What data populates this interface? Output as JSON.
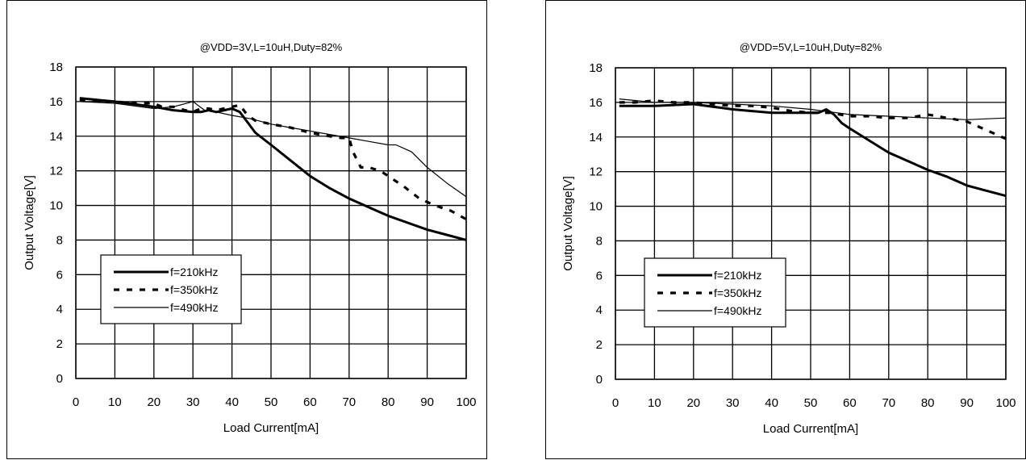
{
  "chart_data": [
    {
      "type": "line",
      "title": "@VDD=3V,L=10uH,Duty=82%",
      "xlabel": "Load Current[mA]",
      "ylabel": "Output Voltage[V]",
      "xlim": [
        0,
        100
      ],
      "ylim": [
        0,
        18
      ],
      "x_ticks": [
        "0",
        "10",
        "20",
        "30",
        "40",
        "50",
        "60",
        "70",
        "80",
        "90",
        "100"
      ],
      "y_ticks": [
        "0",
        "2",
        "4",
        "6",
        "8",
        "10",
        "12",
        "14",
        "16",
        "18"
      ],
      "grid": true,
      "legend_position": "lower-left",
      "series": [
        {
          "name": "f=210kHz",
          "style": "thick",
          "color": "#000000",
          "points": [
            [
              1,
              16.2
            ],
            [
              10,
              16.0
            ],
            [
              20,
              15.7
            ],
            [
              25,
              15.5
            ],
            [
              30,
              15.4
            ],
            [
              32,
              15.4
            ],
            [
              34,
              15.5
            ],
            [
              36,
              15.4
            ],
            [
              38,
              15.5
            ],
            [
              40,
              15.6
            ],
            [
              42,
              15.4
            ],
            [
              44,
              14.8
            ],
            [
              46,
              14.2
            ],
            [
              50,
              13.5
            ],
            [
              55,
              12.6
            ],
            [
              60,
              11.7
            ],
            [
              65,
              11.0
            ],
            [
              70,
              10.4
            ],
            [
              75,
              9.9
            ],
            [
              80,
              9.4
            ],
            [
              85,
              9.0
            ],
            [
              90,
              8.6
            ],
            [
              95,
              8.3
            ],
            [
              100,
              8.0
            ]
          ]
        },
        {
          "name": "f=350kHz",
          "style": "dashed",
          "color": "#000000",
          "points": [
            [
              1,
              16.1
            ],
            [
              10,
              16.0
            ],
            [
              15,
              15.9
            ],
            [
              20,
              15.9
            ],
            [
              22,
              15.7
            ],
            [
              25,
              15.7
            ],
            [
              28,
              15.5
            ],
            [
              30,
              15.4
            ],
            [
              32,
              15.6
            ],
            [
              34,
              15.6
            ],
            [
              36,
              15.5
            ],
            [
              38,
              15.6
            ],
            [
              40,
              15.7
            ],
            [
              42,
              15.8
            ],
            [
              44,
              15.2
            ],
            [
              46,
              14.9
            ],
            [
              50,
              14.7
            ],
            [
              55,
              14.5
            ],
            [
              60,
              14.2
            ],
            [
              65,
              14.0
            ],
            [
              68,
              13.9
            ],
            [
              70,
              13.9
            ],
            [
              71,
              13.1
            ],
            [
              73,
              12.2
            ],
            [
              75,
              12.2
            ],
            [
              78,
              12.0
            ],
            [
              80,
              11.7
            ],
            [
              84,
              11.1
            ],
            [
              88,
              10.4
            ],
            [
              92,
              10.0
            ],
            [
              96,
              9.7
            ],
            [
              100,
              9.2
            ]
          ]
        },
        {
          "name": "f=490kHz",
          "style": "thin",
          "color": "#000000",
          "points": [
            [
              1,
              16.0
            ],
            [
              10,
              15.9
            ],
            [
              20,
              15.6
            ],
            [
              25,
              15.7
            ],
            [
              30,
              16.0
            ],
            [
              33,
              15.5
            ],
            [
              36,
              15.4
            ],
            [
              40,
              15.2
            ],
            [
              45,
              15.0
            ],
            [
              50,
              14.7
            ],
            [
              55,
              14.5
            ],
            [
              60,
              14.3
            ],
            [
              65,
              14.1
            ],
            [
              70,
              13.9
            ],
            [
              75,
              13.7
            ],
            [
              80,
              13.5
            ],
            [
              82,
              13.5
            ],
            [
              86,
              13.1
            ],
            [
              90,
              12.2
            ],
            [
              95,
              11.3
            ],
            [
              100,
              10.5
            ]
          ]
        }
      ]
    },
    {
      "type": "line",
      "title": "@VDD=5V,L=10uH,Duty=82%",
      "xlabel": "Load Current[mA]",
      "ylabel": "Output Voltage[V]",
      "xlim": [
        0,
        100
      ],
      "ylim": [
        0,
        18
      ],
      "x_ticks": [
        "0",
        "10",
        "20",
        "30",
        "40",
        "50",
        "60",
        "70",
        "80",
        "90",
        "100"
      ],
      "y_ticks": [
        "0",
        "2",
        "4",
        "6",
        "8",
        "10",
        "12",
        "14",
        "16",
        "18"
      ],
      "grid": true,
      "legend_position": "lower-left",
      "series": [
        {
          "name": "f=210kHz",
          "style": "thick",
          "color": "#000000",
          "points": [
            [
              1,
              15.8
            ],
            [
              10,
              15.8
            ],
            [
              20,
              15.9
            ],
            [
              30,
              15.6
            ],
            [
              40,
              15.4
            ],
            [
              50,
              15.4
            ],
            [
              52,
              15.4
            ],
            [
              54,
              15.6
            ],
            [
              56,
              15.3
            ],
            [
              58,
              14.8
            ],
            [
              60,
              14.5
            ],
            [
              65,
              13.8
            ],
            [
              70,
              13.1
            ],
            [
              75,
              12.6
            ],
            [
              80,
              12.1
            ],
            [
              85,
              11.7
            ],
            [
              90,
              11.2
            ],
            [
              95,
              10.9
            ],
            [
              100,
              10.6
            ]
          ]
        },
        {
          "name": "f=350kHz",
          "style": "dashed",
          "color": "#000000",
          "points": [
            [
              1,
              16.0
            ],
            [
              5,
              16.0
            ],
            [
              10,
              16.1
            ],
            [
              15,
              16.0
            ],
            [
              20,
              16.0
            ],
            [
              25,
              15.9
            ],
            [
              30,
              15.8
            ],
            [
              35,
              15.8
            ],
            [
              40,
              15.7
            ],
            [
              45,
              15.5
            ],
            [
              50,
              15.4
            ],
            [
              55,
              15.4
            ],
            [
              60,
              15.2
            ],
            [
              65,
              15.2
            ],
            [
              70,
              15.1
            ],
            [
              75,
              15.1
            ],
            [
              80,
              15.3
            ],
            [
              85,
              15.1
            ],
            [
              90,
              14.9
            ],
            [
              95,
              14.4
            ],
            [
              100,
              13.9
            ]
          ]
        },
        {
          "name": "f=490kHz",
          "style": "thin",
          "color": "#000000",
          "points": [
            [
              1,
              16.2
            ],
            [
              10,
              16.0
            ],
            [
              20,
              16.0
            ],
            [
              30,
              15.9
            ],
            [
              40,
              15.8
            ],
            [
              50,
              15.6
            ],
            [
              60,
              15.3
            ],
            [
              70,
              15.2
            ],
            [
              80,
              15.1
            ],
            [
              90,
              15.0
            ],
            [
              100,
              15.1
            ]
          ]
        }
      ]
    }
  ]
}
